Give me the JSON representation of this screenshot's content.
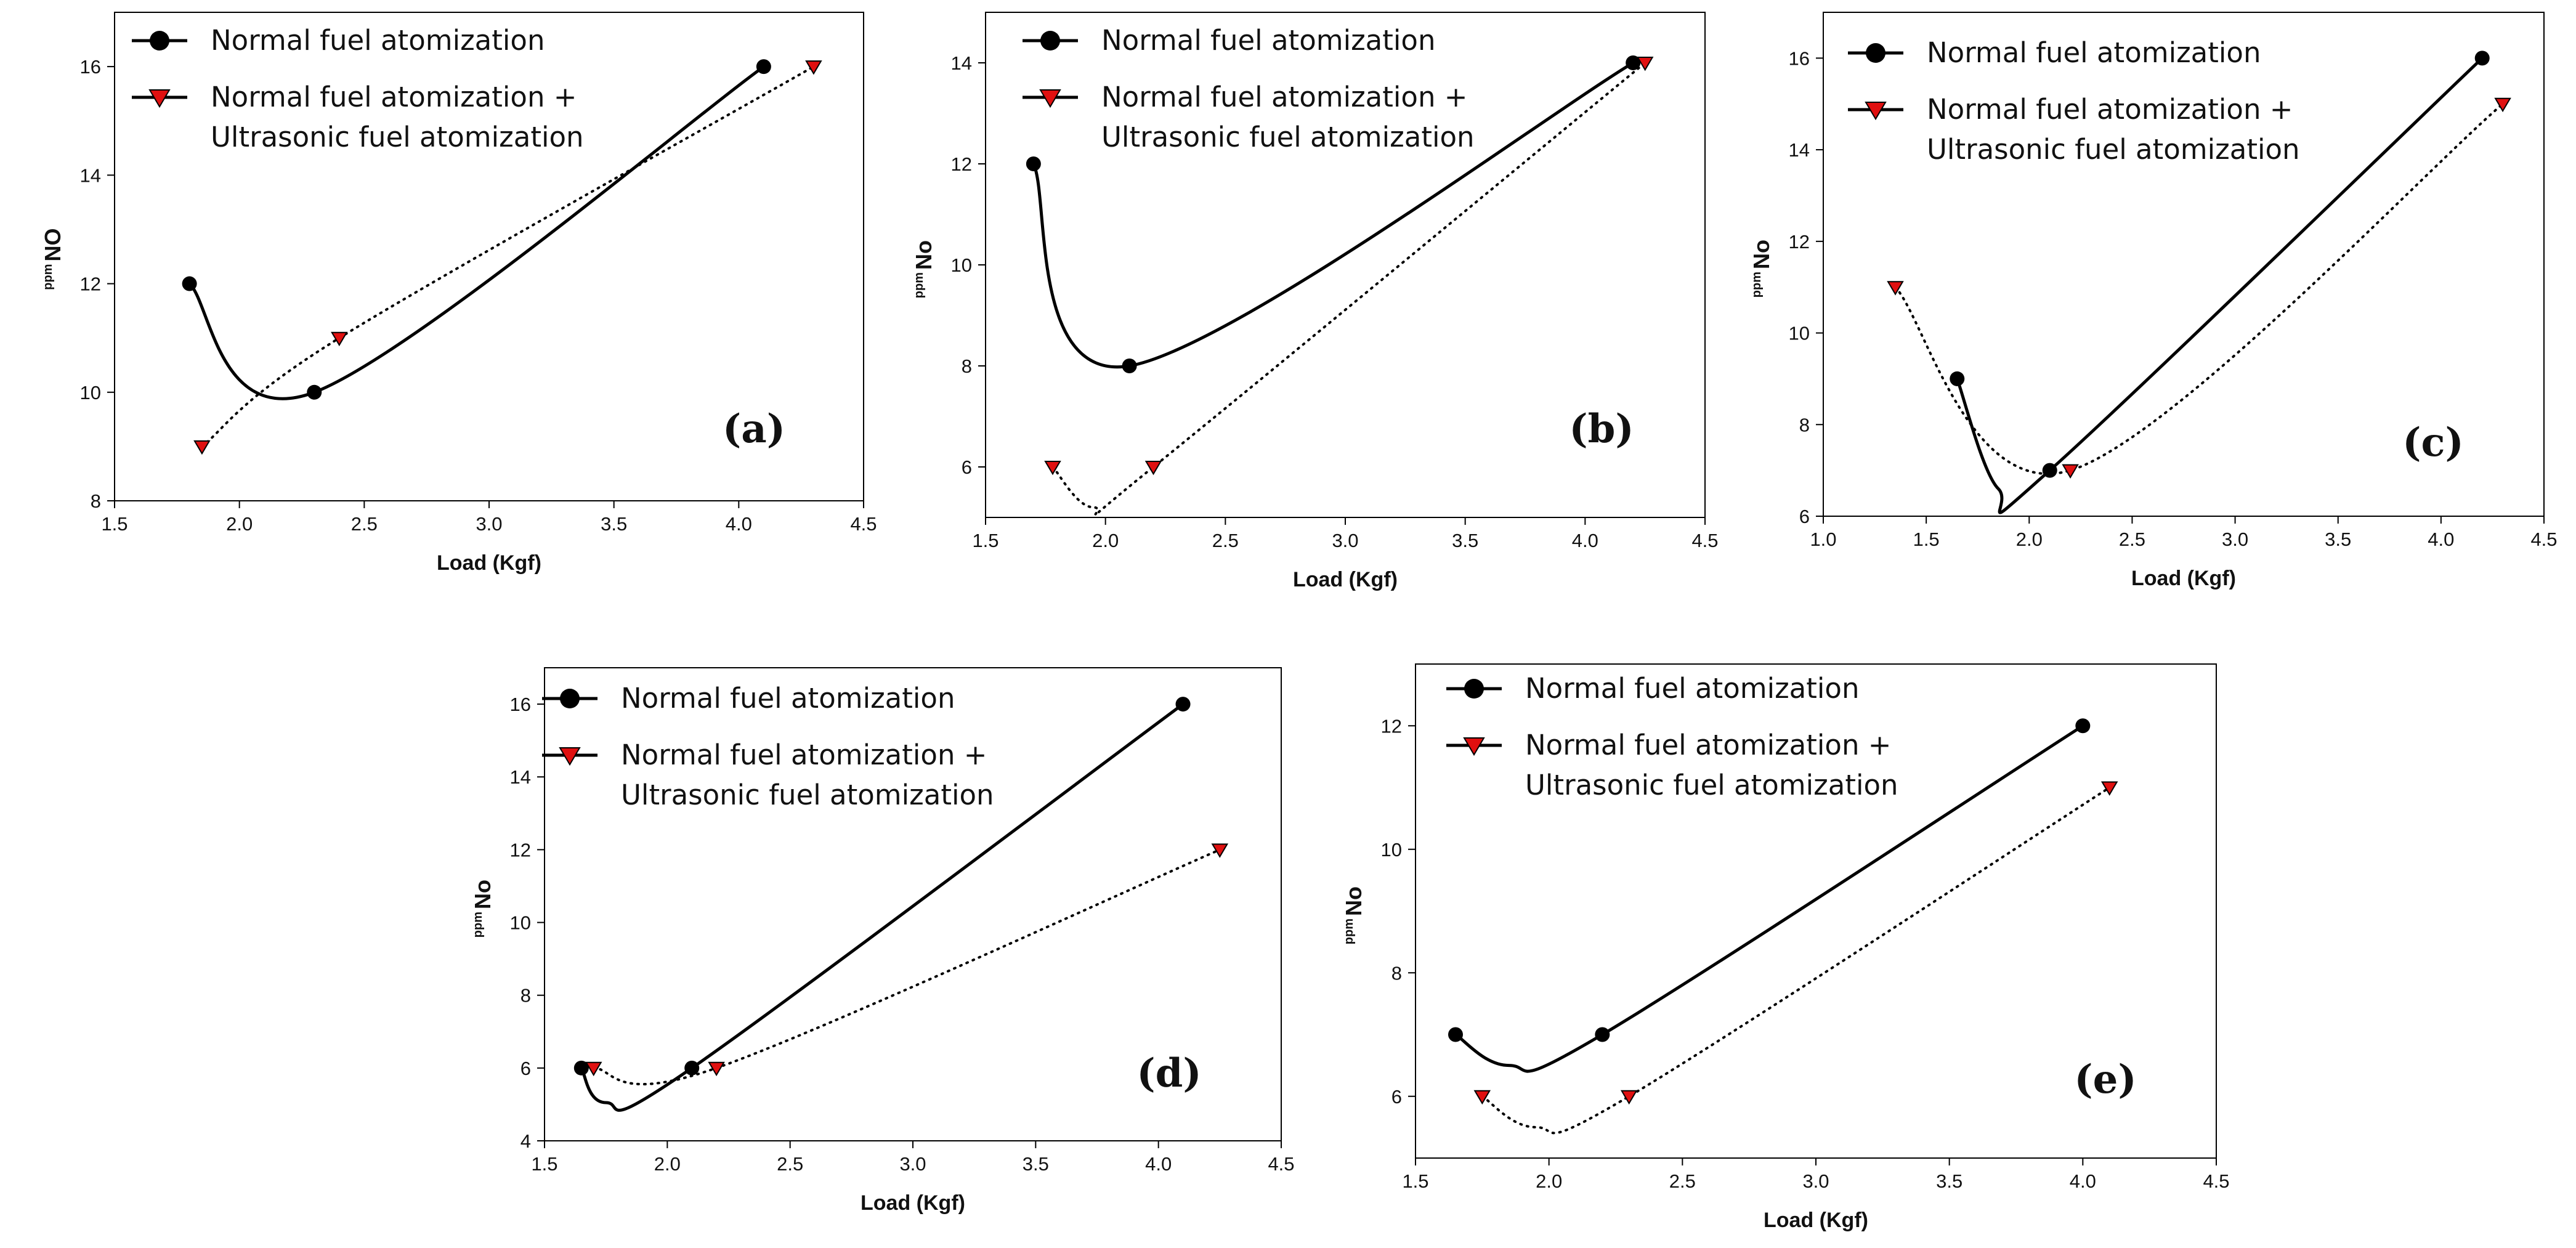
{
  "figure": {
    "colors": {
      "normal_series": "#000000",
      "ultrasonic_marker": "#e01010",
      "axis": "#000000",
      "background": "#ffffff"
    }
  },
  "chart_data": [
    {
      "panel_label": "(a)",
      "type": "line",
      "xlabel": "Load (Kgf)",
      "ylabel_sup": "ppm",
      "ylabel_main": "NO",
      "xlim": [
        1.5,
        4.5
      ],
      "ylim": [
        8,
        17
      ],
      "xticks": [
        "1.5",
        "2.0",
        "2.5",
        "3.0",
        "3.5",
        "4.0",
        "4.5"
      ],
      "yticks": [
        "8",
        "10",
        "12",
        "14",
        "16"
      ],
      "legend": [
        "Normal fuel atomization",
        "Normal fuel atomization +",
        "Ultrasonic fuel atomization"
      ],
      "series": [
        {
          "name": "Normal fuel atomization",
          "marker": "circle",
          "style": "solid",
          "x": [
            1.8,
            2.3,
            4.1
          ],
          "y": [
            12,
            10,
            16
          ],
          "dip": null
        },
        {
          "name": "Normal fuel atomization + Ultrasonic fuel atomization",
          "marker": "triangle-down",
          "style": "dotted",
          "x": [
            1.85,
            2.4,
            4.3
          ],
          "y": [
            9,
            11,
            16
          ],
          "dip": null
        }
      ]
    },
    {
      "panel_label": "(b)",
      "type": "line",
      "xlabel": "Load (Kgf)",
      "ylabel_sup": "ppm",
      "ylabel_main": "No",
      "xlim": [
        1.5,
        4.5
      ],
      "ylim": [
        5,
        15
      ],
      "xticks": [
        "1.5",
        "2.0",
        "2.5",
        "3.0",
        "3.5",
        "4.0",
        "4.5"
      ],
      "yticks": [
        "6",
        "8",
        "10",
        "12",
        "14"
      ],
      "legend": [
        "Normal fuel atomization",
        "Normal fuel atomization +",
        "Ultrasonic fuel atomization"
      ],
      "series": [
        {
          "name": "Normal fuel atomization",
          "marker": "circle",
          "style": "solid",
          "x": [
            1.7,
            2.1,
            4.2
          ],
          "y": [
            12,
            8,
            14
          ],
          "dip": null
        },
        {
          "name": "Normal fuel atomization + Ultrasonic fuel atomization",
          "marker": "triangle-down",
          "style": "dotted",
          "x": [
            1.78,
            2.2,
            4.25
          ],
          "y": [
            6,
            6,
            14
          ],
          "dip": [
            1.95,
            5.2
          ]
        }
      ]
    },
    {
      "panel_label": "(c)",
      "type": "line",
      "xlabel": "Load (Kgf)",
      "ylabel_sup": "ppm",
      "ylabel_main": "No",
      "xlim": [
        1.0,
        4.5
      ],
      "ylim": [
        6,
        17
      ],
      "xticks": [
        "1.0",
        "1.5",
        "2.0",
        "2.5",
        "3.0",
        "3.5",
        "4.0",
        "4.5"
      ],
      "yticks": [
        "6",
        "8",
        "10",
        "12",
        "14",
        "16"
      ],
      "legend": [
        "Normal fuel atomization",
        "Normal fuel atomization +",
        "Ultrasonic fuel atomization"
      ],
      "series": [
        {
          "name": "Normal fuel atomization",
          "marker": "circle",
          "style": "solid",
          "x": [
            1.65,
            2.1,
            4.2
          ],
          "y": [
            9,
            7,
            16
          ],
          "dip": [
            1.85,
            6.6
          ]
        },
        {
          "name": "Normal fuel atomization + Ultrasonic fuel atomization",
          "marker": "triangle-down",
          "style": "dotted",
          "x": [
            1.35,
            2.2,
            4.3
          ],
          "y": [
            11,
            7,
            15
          ],
          "dip": null
        }
      ]
    },
    {
      "panel_label": "(d)",
      "type": "line",
      "xlabel": "Load (Kgf)",
      "ylabel_sup": "ppm",
      "ylabel_main": "No",
      "xlim": [
        1.5,
        4.5
      ],
      "ylim": [
        4,
        17
      ],
      "xticks": [
        "1.5",
        "2.0",
        "2.5",
        "3.0",
        "3.5",
        "4.0",
        "4.5"
      ],
      "yticks": [
        "4",
        "6",
        "8",
        "10",
        "12",
        "14",
        "16"
      ],
      "legend": [
        "Normal fuel atomization",
        "Normal fuel atomization +",
        "Ultrasonic fuel atomization"
      ],
      "series": [
        {
          "name": "Normal fuel atomization",
          "marker": "circle",
          "style": "solid",
          "x": [
            1.65,
            2.1,
            4.1
          ],
          "y": [
            6,
            6,
            16
          ],
          "dip": [
            1.75,
            5.05
          ]
        },
        {
          "name": "Normal fuel atomization + Ultrasonic fuel atomization",
          "marker": "triangle-down",
          "style": "dotted",
          "x": [
            1.7,
            2.2,
            4.25
          ],
          "y": [
            6,
            6,
            12
          ],
          "dip": null
        }
      ]
    },
    {
      "panel_label": "(e)",
      "type": "line",
      "xlabel": "Load (Kgf)",
      "ylabel_sup": "ppm",
      "ylabel_main": "No",
      "xlim": [
        1.5,
        4.5
      ],
      "ylim": [
        5,
        13
      ],
      "xticks": [
        "1.5",
        "2.0",
        "2.5",
        "3.0",
        "3.5",
        "4.0",
        "4.5"
      ],
      "yticks": [
        "6",
        "8",
        "10",
        "12"
      ],
      "legend": [
        "Normal fuel atomization",
        "Normal fuel atomization +",
        "Ultrasonic fuel atomization"
      ],
      "series": [
        {
          "name": "Normal fuel atomization",
          "marker": "circle",
          "style": "solid",
          "x": [
            1.65,
            2.2,
            4.0
          ],
          "y": [
            7,
            7,
            12
          ],
          "dip": [
            1.85,
            6.5
          ]
        },
        {
          "name": "Normal fuel atomization + Ultrasonic fuel atomization",
          "marker": "triangle-down",
          "style": "dotted",
          "x": [
            1.75,
            2.3,
            4.1
          ],
          "y": [
            6,
            6,
            11
          ],
          "dip": [
            1.95,
            5.5
          ]
        }
      ]
    }
  ]
}
